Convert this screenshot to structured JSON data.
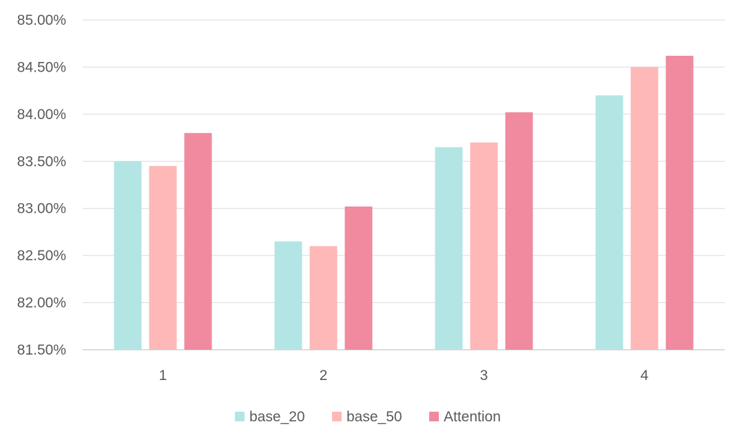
{
  "chart_data": {
    "type": "bar",
    "title": "",
    "xlabel": "",
    "ylabel": "",
    "categories": [
      "1",
      "2",
      "3",
      "4"
    ],
    "series": [
      {
        "name": "base_20",
        "color": "#b3e5e5",
        "values": [
          83.5,
          82.65,
          83.65,
          84.2
        ]
      },
      {
        "name": "base_50",
        "color": "#ffb8b8",
        "values": [
          83.45,
          82.6,
          83.7,
          84.5
        ]
      },
      {
        "name": "Attention",
        "color": "#f08a9e",
        "values": [
          83.8,
          83.02,
          84.02,
          84.62
        ]
      }
    ],
    "ylim": [
      81.5,
      85.0
    ],
    "yticks": [
      "81.50%",
      "82.00%",
      "82.50%",
      "83.00%",
      "83.50%",
      "84.00%",
      "84.50%",
      "85.00%"
    ],
    "grid": true,
    "legend_position": "bottom"
  }
}
